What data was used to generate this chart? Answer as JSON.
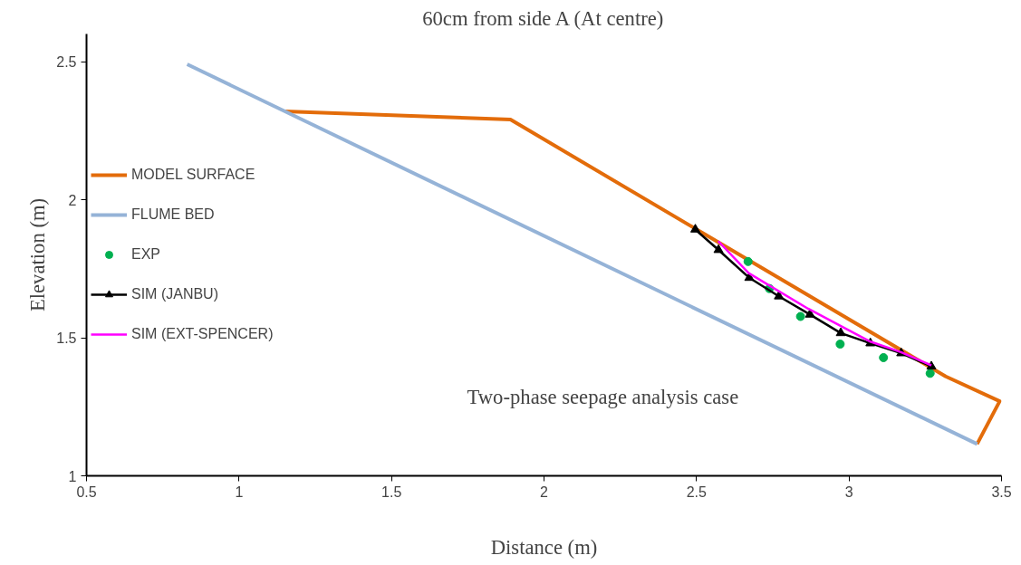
{
  "chart_data": {
    "type": "line",
    "title": "60cm from side A (At centre)",
    "xlabel": "Distance (m)",
    "ylabel": "Elevation (m)",
    "annotations": [
      "Two-phase seepage analysis case"
    ],
    "xlim": [
      0.5,
      3.5
    ],
    "xticks": [
      0.5,
      1,
      1.5,
      2,
      2.5,
      3,
      3.5
    ],
    "ylim": [
      1,
      2.6
    ],
    "yticks": [
      1,
      1.5,
      2,
      2.5
    ],
    "grid": false,
    "legend": "left",
    "series": [
      {
        "name": "MODEL SURFACE",
        "color": "#e36c0a",
        "marker": "none",
        "x": [
          1.15,
          1.89,
          3.317,
          3.494,
          3.42
        ],
        "values": [
          2.32,
          2.29,
          1.36,
          1.27,
          1.115
        ]
      },
      {
        "name": "FLUME BED",
        "color": "#95b3d7",
        "marker": "none",
        "x": [
          0.83,
          3.42
        ],
        "values": [
          2.49,
          1.115
        ]
      },
      {
        "name": "EXP",
        "color": "#00b050",
        "type": "scatter",
        "marker": "circle",
        "x": [
          2.669,
          2.739,
          2.841,
          2.971,
          3.113,
          3.266
        ],
        "values": [
          1.776,
          1.678,
          1.577,
          1.477,
          1.428,
          1.371
        ]
      },
      {
        "name": "SIM (JANBU)",
        "color": "#000000",
        "marker": "triangle",
        "x": [
          2.496,
          2.572,
          2.673,
          2.77,
          2.872,
          2.973,
          3.07,
          3.171,
          3.27
        ],
        "values": [
          1.892,
          1.818,
          1.717,
          1.65,
          1.584,
          1.517,
          1.48,
          1.444,
          1.396
        ]
      },
      {
        "name": "SIM (EXT-SPENCER)",
        "color": "#ff00ff",
        "marker": "none",
        "x": [
          2.571,
          2.671,
          2.866,
          2.972,
          3.07,
          3.17,
          3.27
        ],
        "values": [
          1.85,
          1.734,
          1.605,
          1.543,
          1.486,
          1.448,
          1.4
        ]
      }
    ]
  }
}
